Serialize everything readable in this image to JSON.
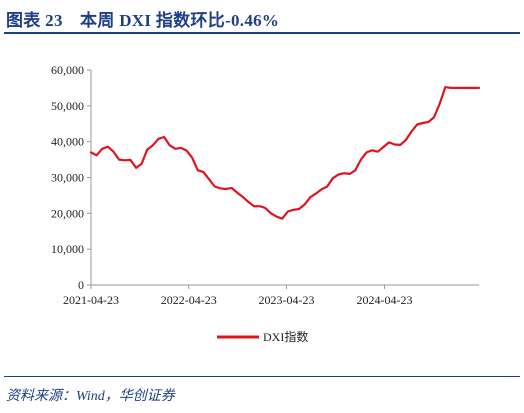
{
  "header": {
    "title": "图表 23　本周 DXI 指数环比-0.46%"
  },
  "footer": {
    "source": "资料来源：Wind，华创证券"
  },
  "colors": {
    "accent": "#1f3f86",
    "series": "#e0141e",
    "axis": "#999999"
  },
  "chart_data": {
    "type": "line",
    "ylim": [
      0,
      60000
    ],
    "y_ticks": [
      0,
      10000,
      20000,
      30000,
      40000,
      50000,
      60000
    ],
    "y_tick_labels": [
      "0",
      "10,000",
      "20,000",
      "30,000",
      "40,000",
      "50,000",
      "60,000"
    ],
    "x_ticks": [
      "2021-04-23",
      "2022-04-23",
      "2023-04-23",
      "2024-04-23"
    ],
    "legend": {
      "position": "bottom"
    },
    "series": [
      {
        "name": "DXI指数",
        "color": "#e0141e",
        "x": [
          "2021-04-23",
          "2021-05-14",
          "2021-06-04",
          "2021-06-25",
          "2021-07-16",
          "2021-08-06",
          "2021-08-27",
          "2021-09-17",
          "2021-10-08",
          "2021-10-29",
          "2021-11-19",
          "2021-12-10",
          "2021-12-31",
          "2022-01-21",
          "2022-02-11",
          "2022-03-04",
          "2022-03-25",
          "2022-04-15",
          "2022-05-06",
          "2022-05-27",
          "2022-06-17",
          "2022-07-08",
          "2022-07-29",
          "2022-08-19",
          "2022-09-09",
          "2022-09-30",
          "2022-10-21",
          "2022-11-11",
          "2022-12-02",
          "2022-12-23",
          "2023-01-13",
          "2023-02-03",
          "2023-02-24",
          "2023-03-17",
          "2023-04-07",
          "2023-04-28",
          "2023-05-19",
          "2023-06-09",
          "2023-06-30",
          "2023-07-21",
          "2023-08-11",
          "2023-09-01",
          "2023-09-22",
          "2023-10-13",
          "2023-11-03",
          "2023-11-24",
          "2023-12-15",
          "2024-01-05",
          "2024-01-26",
          "2024-02-16",
          "2024-03-08",
          "2024-03-29",
          "2024-04-19",
          "2024-05-10",
          "2024-05-31",
          "2024-06-21",
          "2024-07-12",
          "2024-08-02",
          "2024-08-23",
          "2024-09-13",
          "2024-10-04",
          "2024-10-25",
          "2024-11-15",
          "2024-12-06",
          "2024-12-27",
          "2025-01-17",
          "2025-02-07",
          "2025-02-28",
          "2025-03-21",
          "2025-04-11"
        ],
        "values": [
          37000,
          36200,
          38000,
          38600,
          37200,
          35000,
          34800,
          34900,
          32700,
          33800,
          37800,
          39000,
          40800,
          41300,
          39000,
          38000,
          38300,
          37500,
          35500,
          32000,
          31500,
          29500,
          27500,
          27000,
          26800,
          27100,
          25800,
          24600,
          23200,
          22000,
          22000,
          21500,
          20000,
          19100,
          18500,
          20500,
          21000,
          21200,
          22500,
          24500,
          25500,
          26700,
          27500,
          29800,
          30800,
          31200,
          31000,
          32000,
          35000,
          37000,
          37600,
          37200,
          38500,
          39800,
          39200,
          39100,
          40500,
          42800,
          44800,
          45200,
          45500,
          46800,
          50500,
          55200,
          55000,
          55000,
          55000,
          55000,
          55000,
          55000
        ]
      }
    ]
  }
}
